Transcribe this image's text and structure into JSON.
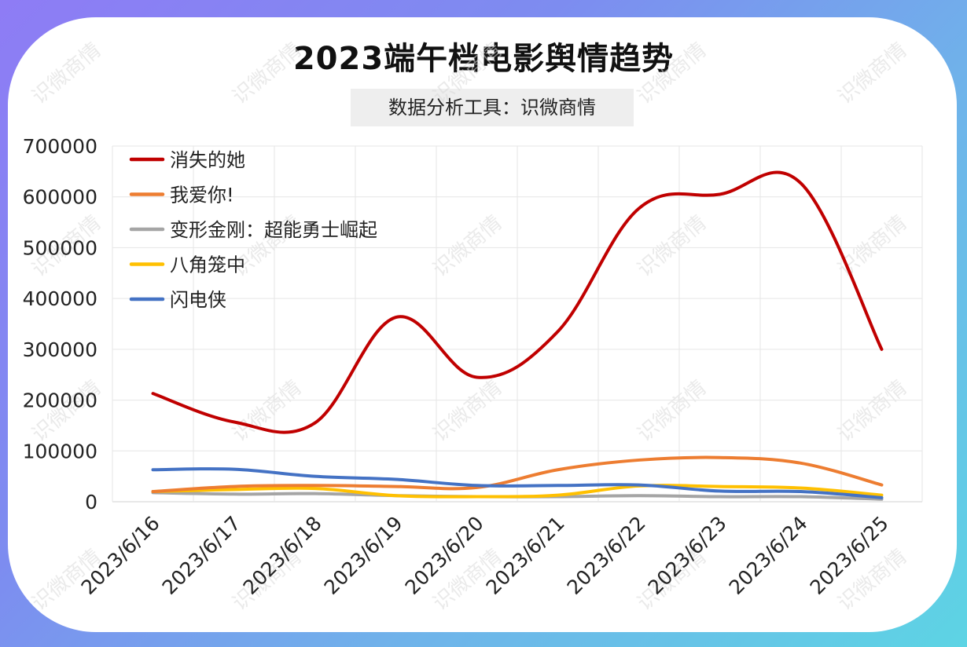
{
  "title": "2023端午档电影舆情趋势",
  "subtitle": "数据分析工具：识微商情",
  "watermark": "识微商情",
  "colors": {
    "background_gradient": [
      "#8e7cf5",
      "#5dd4e4"
    ],
    "card": "#ffffff",
    "grid": "#e6e6e6",
    "axis_text": "#222222"
  },
  "chart_data": {
    "type": "line",
    "title": "2023端午档电影舆情趋势",
    "categories": [
      "2023/6/16",
      "2023/6/17",
      "2023/6/18",
      "2023/6/19",
      "2023/6/20",
      "2023/6/21",
      "2023/6/22",
      "2023/6/23",
      "2023/6/24",
      "2023/6/25"
    ],
    "ylim": [
      0,
      700000
    ],
    "yticks": [
      0,
      100000,
      200000,
      300000,
      400000,
      500000,
      600000,
      700000
    ],
    "grid": true,
    "legend": "top-left",
    "smooth": true,
    "series": [
      {
        "name": "消失的她",
        "color": "#c00000",
        "values": [
          213000,
          157000,
          155000,
          363000,
          245000,
          335000,
          577000,
          605000,
          627000,
          300000
        ]
      },
      {
        "name": "我爱你!",
        "color": "#ed7d31",
        "values": [
          20000,
          30000,
          32000,
          30000,
          28000,
          63000,
          82000,
          87000,
          76000,
          33000
        ]
      },
      {
        "name": "变形金刚：超能勇士崛起",
        "color": "#a5a5a5",
        "values": [
          18000,
          15000,
          16000,
          12000,
          10000,
          10000,
          12000,
          10000,
          10000,
          5000
        ]
      },
      {
        "name": "八角笼中",
        "color": "#ffc000",
        "values": [
          20000,
          24000,
          26000,
          12000,
          10000,
          13000,
          31000,
          30000,
          27000,
          13000
        ]
      },
      {
        "name": "闪电侠",
        "color": "#4472c4",
        "values": [
          63000,
          64000,
          50000,
          44000,
          32000,
          32000,
          33000,
          21000,
          20000,
          8000
        ]
      }
    ]
  }
}
